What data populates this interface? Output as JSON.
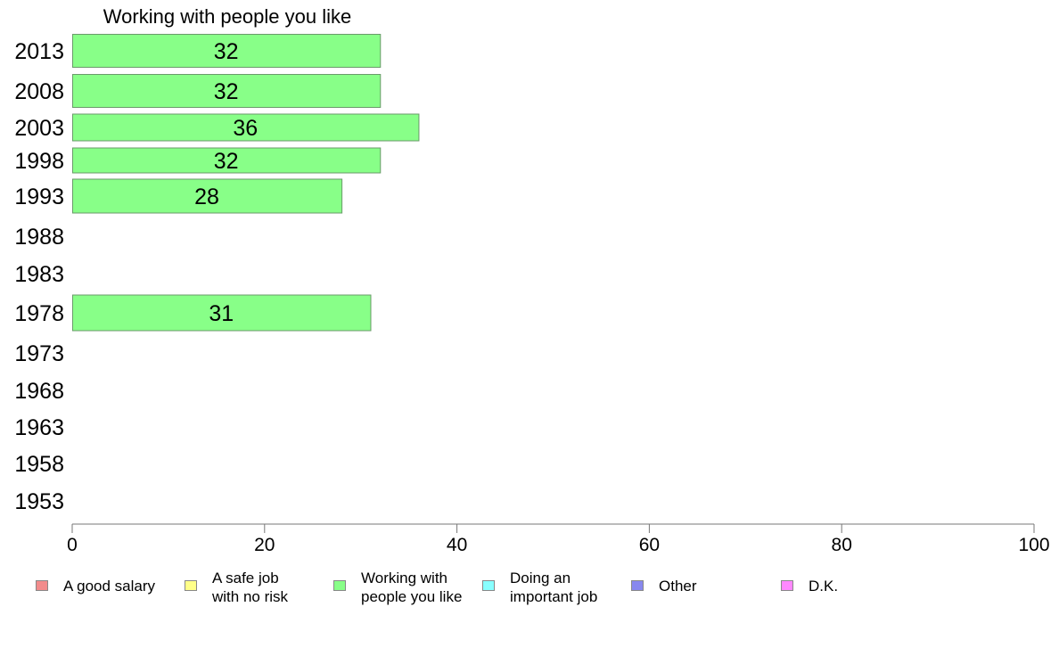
{
  "chart_data": {
    "type": "bar",
    "orientation": "horizontal",
    "title": "Working with people you like",
    "categories": [
      "2013",
      "2008",
      "2003",
      "1998",
      "1993",
      "1988",
      "1983",
      "1978",
      "1973",
      "1968",
      "1963",
      "1958",
      "1953"
    ],
    "series": [
      {
        "name": "Working with people you like",
        "color": "#88ff88",
        "values": [
          32,
          32,
          36,
          32,
          28,
          null,
          null,
          31,
          null,
          null,
          null,
          null,
          null
        ],
        "labels": [
          "32",
          "32",
          "36",
          "32",
          "28",
          "",
          "",
          "31",
          "",
          "",
          "",
          "",
          ""
        ]
      }
    ],
    "xlim": [
      0,
      100
    ],
    "x_ticks": [
      "0",
      "20",
      "40",
      "60",
      "80",
      "100"
    ],
    "grid": false,
    "legend_placement": "bottom"
  },
  "legend": [
    {
      "label": "A good salary",
      "color": "#f28c8c"
    },
    {
      "label": "A safe job\nwith no risk",
      "color": "#ffff88"
    },
    {
      "label": "Working with\npeople you like",
      "color": "#88ff88"
    },
    {
      "label": "Doing an\nimportant job",
      "color": "#88ffff"
    },
    {
      "label": "Other",
      "color": "#8888ee"
    },
    {
      "label": "D.K.",
      "color": "#ff88ff"
    }
  ]
}
